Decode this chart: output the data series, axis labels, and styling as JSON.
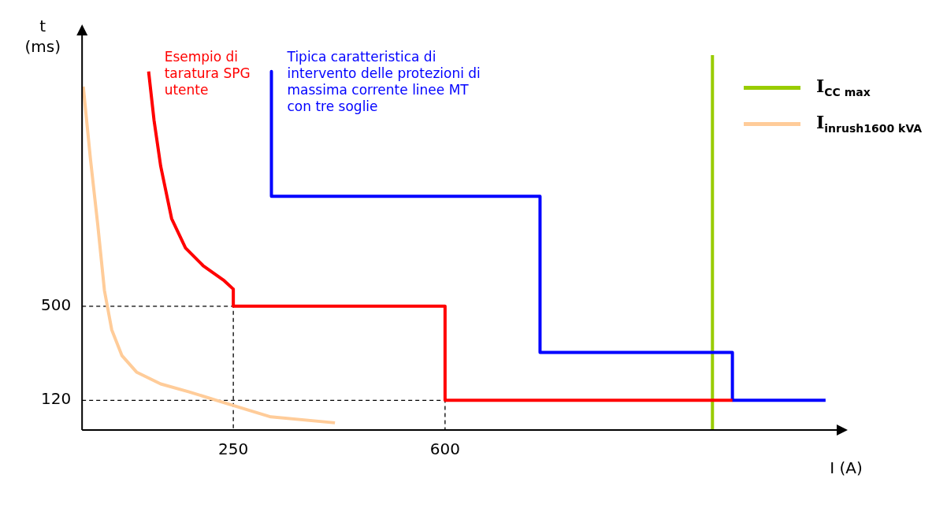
{
  "chart_data": {
    "type": "line",
    "xlabel": "I (A)",
    "ylabel": "t (ms)",
    "xlim": [
      0,
      1250
    ],
    "xticks": [
      250,
      600
    ],
    "ylim": [
      0,
      1600
    ],
    "yticks": [
      120,
      500
    ],
    "grid": false,
    "legend": "top right",
    "marker": "none",
    "annotations": [
      "Esempio di taratura SPG utente",
      "Tipica caratteristica di intervento delle protezioni di massima corrente linee MT con tre soglie"
    ],
    "series": [
      {
        "color": "#ff0000",
        "x": [
          110,
          119,
          130,
          148,
          171,
          200,
          235,
          250,
          250,
          600,
          600,
          1075
        ],
        "values": [
          1448,
          1250,
          1065,
          854,
          735,
          664,
          603,
          569,
          500,
          500,
          120,
          120
        ]
      },
      {
        "color": "#0000ff",
        "x": [
          313,
          313,
          757,
          757,
          1075,
          1075,
          1229
        ],
        "values": [
          1448,
          944,
          944,
          313,
          313,
          120,
          120
        ]
      },
      {
        "name": "I$_{CC max}$",
        "color": "#99cc00",
        "x": [
          1042,
          1042
        ],
        "values": [
          0,
          1514
        ]
      },
      {
        "name": "I$_{inrush1600 kVA}$",
        "color": "#ffcc99",
        "x": [
          2,
          14,
          26,
          37,
          49,
          66,
          90,
          130,
          177,
          235,
          312,
          418
        ],
        "values": [
          1387,
          1091,
          827,
          563,
          405,
          300,
          234,
          186,
          154,
          110,
          53,
          29
        ]
      },
      {
        "color": "#000000",
        "line_style": "dashed",
        "x": [
          0,
          250,
          250
        ],
        "values": [
          500,
          500,
          0
        ]
      },
      {
        "color": "#000000",
        "line_style": "dashed",
        "x": [
          0,
          600,
          600
        ],
        "values": [
          120,
          120,
          0
        ]
      }
    ]
  }
}
